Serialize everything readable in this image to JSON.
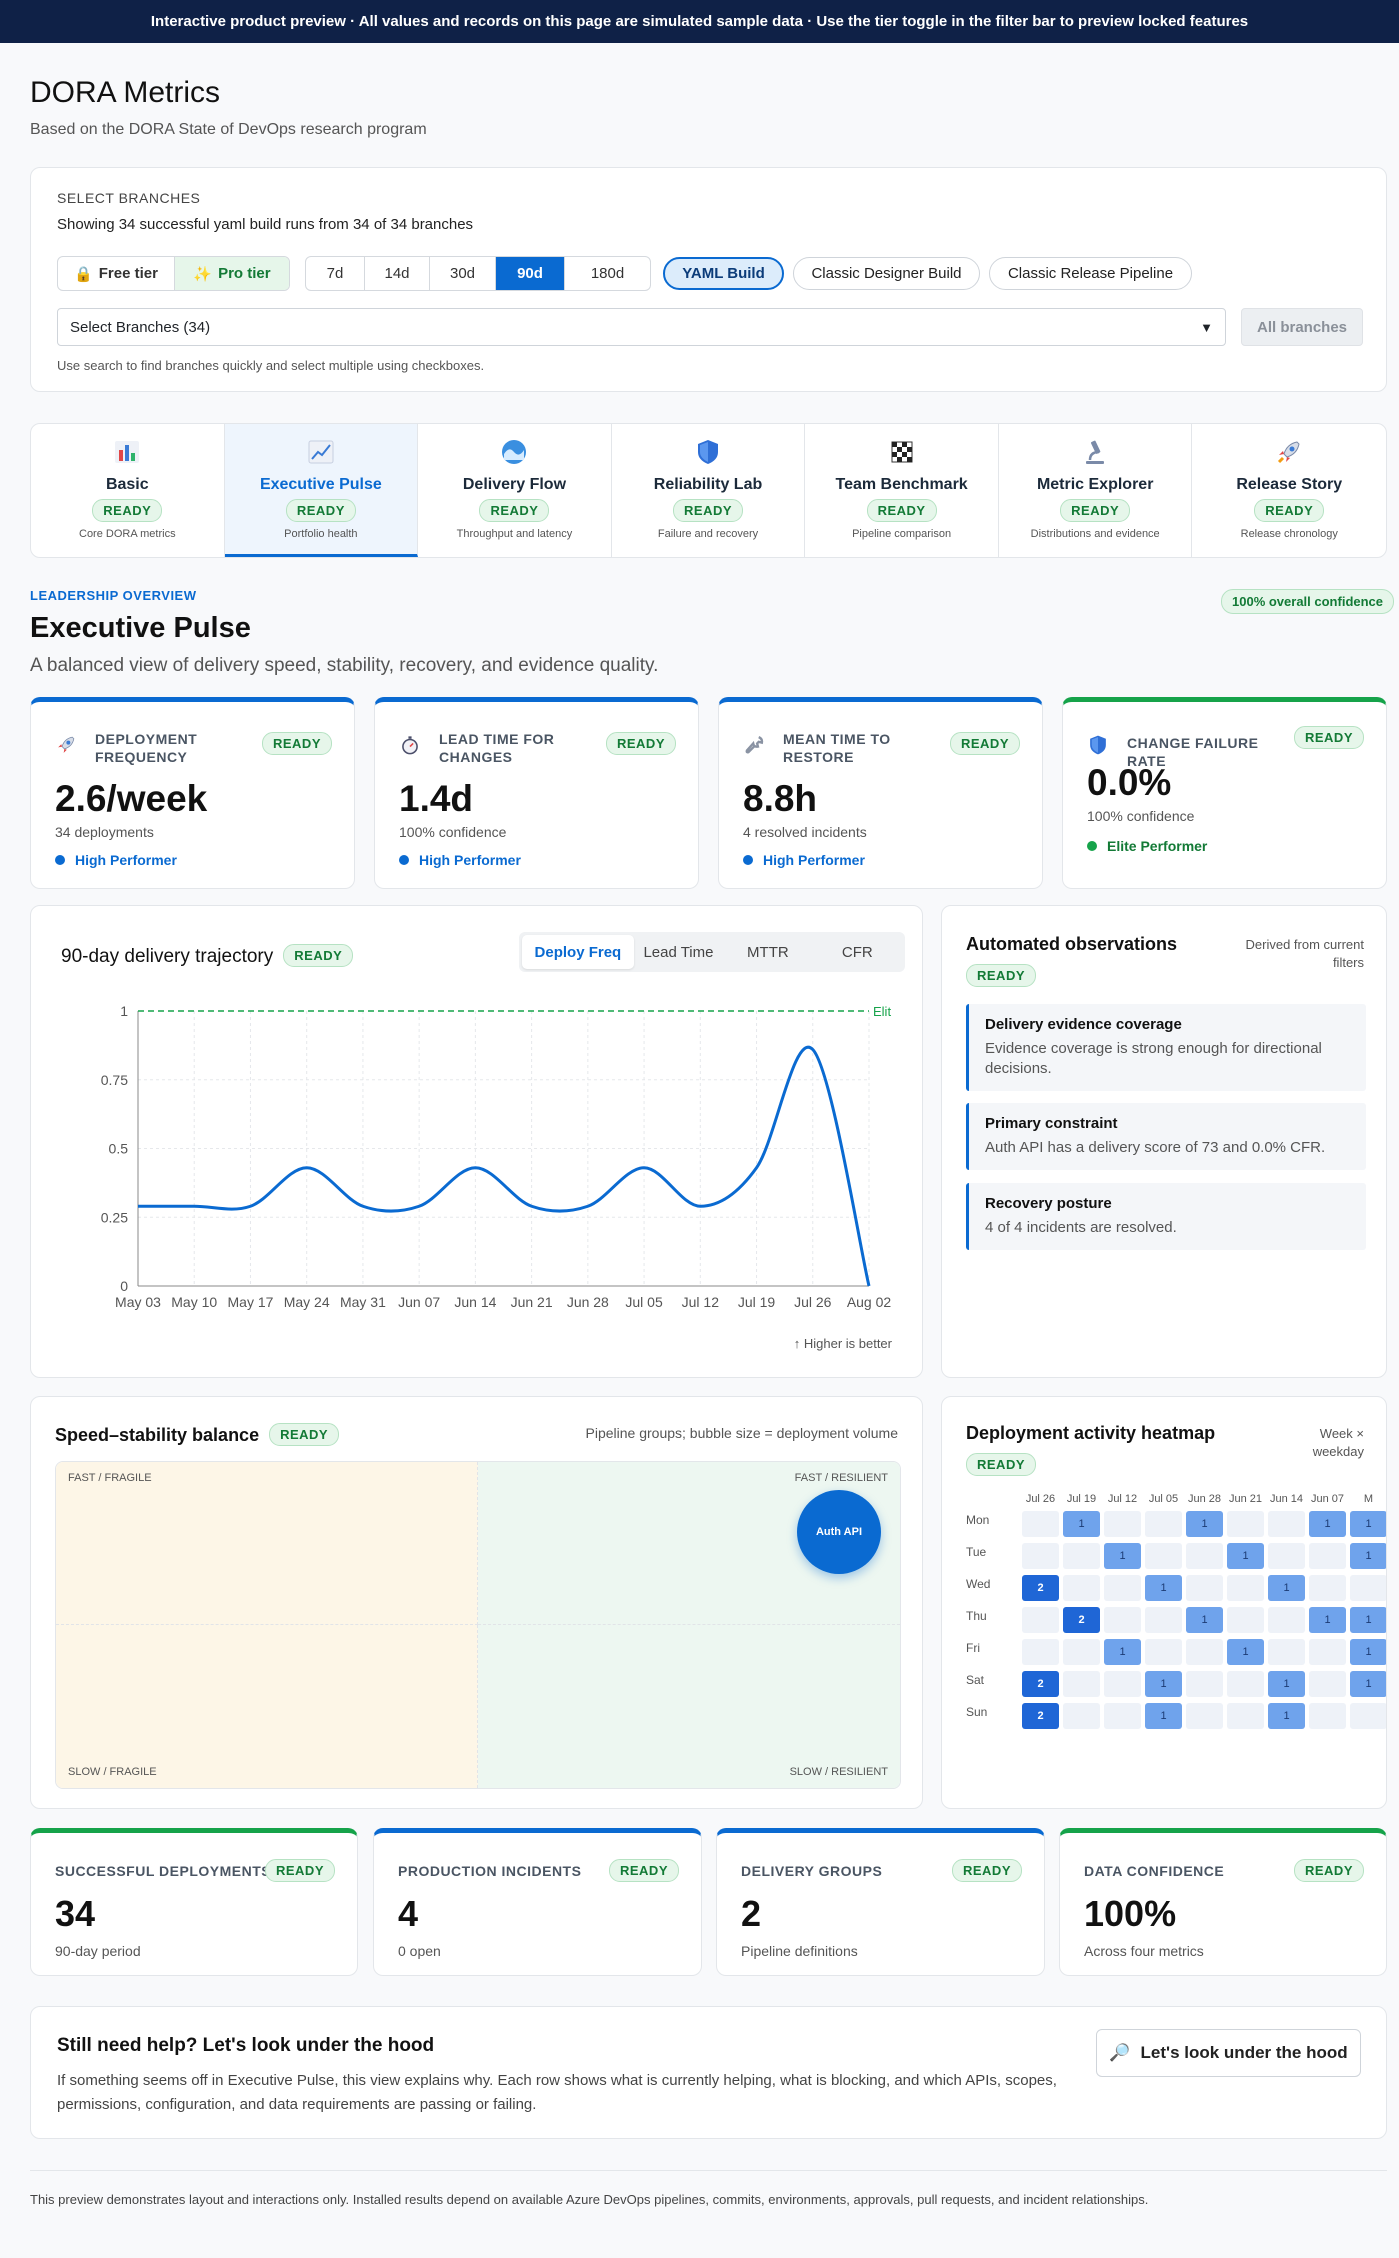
{
  "banner": "Interactive product preview · All values and records on this page are simulated sample data · Use the tier toggle in the filter bar to preview locked features",
  "page": {
    "title": "DORA Metrics",
    "subtitle": "Based on the DORA State of DevOps research program"
  },
  "filter": {
    "label": "SELECT BRANCHES",
    "description": "Showing 34 successful yaml build runs from 34 of 34 branches",
    "tiers": [
      "Free tier",
      "Pro tier"
    ],
    "tier_icons": [
      "lock-icon",
      "sparkle-icon"
    ],
    "selected_tier": "Pro tier",
    "ranges": [
      "7d",
      "14d",
      "30d",
      "90d",
      "180d"
    ],
    "selected_range": "90d",
    "pipelines": [
      "YAML Build",
      "Classic Designer Build",
      "Classic Release Pipeline"
    ],
    "selected_pipeline": "YAML Build",
    "dropdown": "Select Branches (34)",
    "all_branches": "All branches",
    "hint": "Use search to find branches quickly and select multiple using checkboxes."
  },
  "tabs": [
    {
      "name": "Basic",
      "status": "READY",
      "sub": "Core DORA metrics",
      "icon": "bar-chart-icon"
    },
    {
      "name": "Executive Pulse",
      "status": "READY",
      "sub": "Portfolio health",
      "icon": "trend-chart-icon"
    },
    {
      "name": "Delivery Flow",
      "status": "READY",
      "sub": "Throughput and latency",
      "icon": "wave-icon"
    },
    {
      "name": "Reliability Lab",
      "status": "READY",
      "sub": "Failure and recovery",
      "icon": "shield-icon"
    },
    {
      "name": "Team Benchmark",
      "status": "READY",
      "sub": "Pipeline comparison",
      "icon": "checkered-flag-icon"
    },
    {
      "name": "Metric Explorer",
      "status": "READY",
      "sub": "Distributions and evidence",
      "icon": "microscope-icon"
    },
    {
      "name": "Release Story",
      "status": "READY",
      "sub": "Release chronology",
      "icon": "rocket-icon"
    }
  ],
  "active_tab": "Executive Pulse",
  "section": {
    "kicker": "LEADERSHIP OVERVIEW",
    "confidence": "100% overall confidence",
    "title": "Executive Pulse",
    "description": "A balanced view of delivery speed, stability, recovery, and evidence quality."
  },
  "kpis": [
    {
      "title": "DEPLOYMENT FREQUENCY",
      "status": "READY",
      "value": "2.6/week",
      "sub": "34 deployments",
      "perf": "High Performer",
      "icon": "rocket-icon",
      "color": "#0a6ad1"
    },
    {
      "title": "LEAD TIME FOR CHANGES",
      "status": "READY",
      "value": "1.4d",
      "sub": "100% confidence",
      "perf": "High Performer",
      "icon": "stopwatch-icon",
      "color": "#0a6ad1"
    },
    {
      "title": "MEAN TIME TO RESTORE",
      "status": "READY",
      "value": "8.8h",
      "sub": "4 resolved incidents",
      "perf": "High Performer",
      "icon": "wrench-icon",
      "color": "#0a6ad1"
    },
    {
      "title": "CHANGE FAILURE RATE",
      "status": "READY",
      "value": "0.0%",
      "sub": "100% confidence",
      "perf": "Elite Performer",
      "icon": "shield-icon",
      "color": "#16a34a"
    }
  ],
  "trajectory": {
    "title": "90-day delivery trajectory",
    "status": "READY",
    "tabs": [
      "Deploy Freq",
      "Lead Time",
      "MTTR",
      "CFR"
    ],
    "selected_tab": "Deploy Freq",
    "note": "↑ Higher is better"
  },
  "chart_data": {
    "type": "line",
    "x": [
      "May 03",
      "May 10",
      "May 17",
      "May 24",
      "May 31",
      "Jun 07",
      "Jun 14",
      "Jun 21",
      "Jun 28",
      "Jul 05",
      "Jul 12",
      "Jul 19",
      "Jul 26",
      "Aug 02"
    ],
    "values": [
      0.29,
      0.29,
      0.29,
      0.43,
      0.29,
      0.29,
      0.43,
      0.29,
      0.29,
      0.43,
      0.29,
      0.43,
      0.86,
      0
    ],
    "yticks": [
      "0",
      "0.25",
      "0.5",
      "0.75",
      "1"
    ],
    "ylim": [
      0,
      1
    ],
    "reference": {
      "value": 1,
      "label": "Elit"
    },
    "line_color": "#0a6ad1",
    "reference_color": "#16a34a",
    "grid": true
  },
  "observations": {
    "title": "Automated observations",
    "derived": "Derived from current filters",
    "status": "READY",
    "items": [
      {
        "head": "Delivery evidence coverage",
        "body": "Evidence coverage is strong enough for directional decisions."
      },
      {
        "head": "Primary constraint",
        "body": "Auth API has a delivery score of 73 and 0.0% CFR."
      },
      {
        "head": "Recovery posture",
        "body": "4 of 4 incidents are resolved."
      }
    ]
  },
  "balance": {
    "title": "Speed–stability balance",
    "status": "READY",
    "description": "Pipeline groups; bubble size = deployment volume",
    "quadrants": [
      "FAST / FRAGILE",
      "FAST / RESILIENT",
      "SLOW / FRAGILE",
      "SLOW / RESILIENT"
    ],
    "bubble": "Auth API"
  },
  "heatmap": {
    "title": "Deployment activity heatmap",
    "dims": "Week × weekday",
    "status": "READY",
    "weeks": [
      "Jul 26",
      "Jul 19",
      "Jul 12",
      "Jul 05",
      "Jun 28",
      "Jun 21",
      "Jun 14",
      "Jun 07",
      "M"
    ],
    "days": [
      "Mon",
      "Tue",
      "Wed",
      "Thu",
      "Fri",
      "Sat",
      "Sun"
    ],
    "values": [
      [
        0,
        1,
        0,
        0,
        1,
        0,
        0,
        1,
        1
      ],
      [
        0,
        0,
        1,
        0,
        0,
        1,
        0,
        0,
        1
      ],
      [
        2,
        0,
        0,
        1,
        0,
        0,
        1,
        0,
        0
      ],
      [
        0,
        2,
        0,
        0,
        1,
        0,
        0,
        1,
        1
      ],
      [
        0,
        0,
        1,
        0,
        0,
        1,
        0,
        0,
        1
      ],
      [
        2,
        0,
        0,
        1,
        0,
        0,
        1,
        0,
        1
      ],
      [
        2,
        0,
        0,
        1,
        0,
        0,
        1,
        0,
        0
      ]
    ]
  },
  "summary": [
    {
      "title": "SUCCESSFUL DEPLOYMENTS",
      "status": "READY",
      "value": "34",
      "sub": "90-day period"
    },
    {
      "title": "PRODUCTION INCIDENTS",
      "status": "READY",
      "value": "4",
      "sub": "0 open"
    },
    {
      "title": "DELIVERY GROUPS",
      "status": "READY",
      "value": "2",
      "sub": "Pipeline definitions"
    },
    {
      "title": "DATA CONFIDENCE",
      "status": "READY",
      "value": "100%",
      "sub": "Across four metrics"
    }
  ],
  "help": {
    "title": "Still need help? Let's look under the hood",
    "description": "If something seems off in Executive Pulse, this view explains why. Each row shows what is currently helping, what is blocking, and which APIs, scopes, permissions, configuration, and data requirements are passing or failing.",
    "button": "Let's look under the hood",
    "button_icon": "magnifier-icon"
  },
  "footer": "This preview demonstrates layout and interactions only. Installed results depend on available Azure DevOps pipelines, commits, environments, approvals, pull requests, and incident relationships."
}
